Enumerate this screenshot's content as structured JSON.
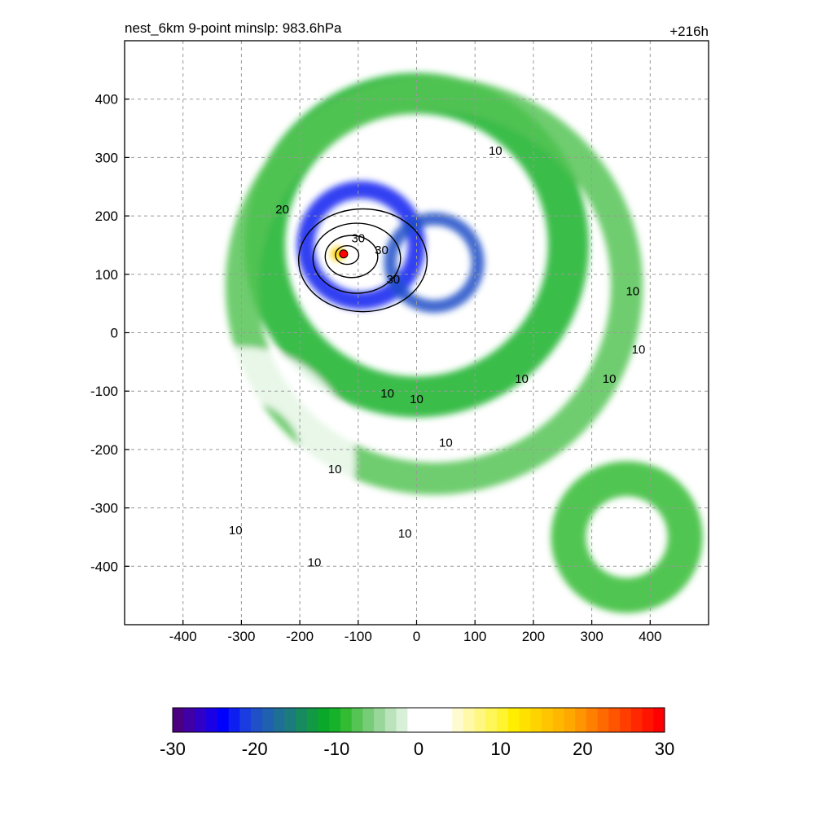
{
  "chart_data": {
    "type": "heatmap",
    "title": "nest_6km  9-point minslp: 983.6hPa",
    "forecast_hour": "+216h",
    "xlabel": "",
    "ylabel": "",
    "xlim": [
      -500,
      500
    ],
    "ylim": [
      -500,
      500
    ],
    "xticks": [
      -400,
      -300,
      -200,
      -100,
      0,
      100,
      200,
      300,
      400
    ],
    "yticks": [
      400,
      300,
      200,
      100,
      0,
      -100,
      -200,
      -300,
      -400
    ],
    "grid": true,
    "storm_center": [
      -125,
      135
    ],
    "fill_regions": [
      {
        "name": "spiral-band",
        "value": -10,
        "cx": 0,
        "cy": 150,
        "r": 260,
        "w": 70
      },
      {
        "name": "outer-spiral",
        "value": -8,
        "cx": 30,
        "cy": 80,
        "r": 330,
        "w": 55
      },
      {
        "name": "inner-ring",
        "value": -22,
        "cx": -95,
        "cy": 150,
        "r": 95,
        "w": 30
      },
      {
        "name": "east-band",
        "value": -20,
        "cx": 30,
        "cy": 120,
        "r": 75,
        "w": 22
      },
      {
        "name": "southeast-band",
        "value": -9,
        "cx": 360,
        "cy": -350,
        "r": 100,
        "w": 60
      },
      {
        "name": "southwest-positive",
        "value": 4,
        "cx": -300,
        "cy": -220,
        "r": 150,
        "w": 90
      },
      {
        "name": "core-positive",
        "value": 14,
        "cx": -135,
        "cy": 135,
        "r": 12,
        "w": 8
      }
    ],
    "contour_labels": [
      {
        "text": "10",
        "x": 135,
        "y": 310
      },
      {
        "text": "20",
        "x": -230,
        "y": 210
      },
      {
        "text": "30",
        "x": -100,
        "y": 160
      },
      {
        "text": "30",
        "x": -60,
        "y": 140
      },
      {
        "text": "30",
        "x": -40,
        "y": 90
      },
      {
        "text": "10",
        "x": 370,
        "y": 70
      },
      {
        "text": "10",
        "x": 380,
        "y": -30
      },
      {
        "text": "10",
        "x": 330,
        "y": -80
      },
      {
        "text": "10",
        "x": 180,
        "y": -80
      },
      {
        "text": "10",
        "x": -50,
        "y": -105
      },
      {
        "text": "10",
        "x": 0,
        "y": -115
      },
      {
        "text": "10",
        "x": 50,
        "y": -190
      },
      {
        "text": "10",
        "x": -140,
        "y": -235
      },
      {
        "text": "10",
        "x": -20,
        "y": -345
      },
      {
        "text": "10",
        "x": -310,
        "y": -340
      },
      {
        "text": "10",
        "x": -175,
        "y": -395
      }
    ],
    "colorbar": {
      "min": -30,
      "max": 30,
      "tick_labels": [
        "-30",
        "-20",
        "-10",
        "0",
        "10",
        "20",
        "30"
      ],
      "colors": [
        "#4b0082",
        "#3f00a5",
        "#2e00c8",
        "#1a00e6",
        "#0000ff",
        "#0d1ef0",
        "#1a3ce1",
        "#2050c8",
        "#1f60b0",
        "#1e6e96",
        "#1c7c7d",
        "#178a5f",
        "#119944",
        "#0aa82a",
        "#15b22a",
        "#33bb33",
        "#55c455",
        "#77cd77",
        "#99d699",
        "#bbe3bb",
        "#d8efd8",
        "#ffffff",
        "#ffffff",
        "#ffffff",
        "#ffffff",
        "#fffbd0",
        "#fff9a8",
        "#fff780",
        "#fff658",
        "#fff430",
        "#ffee00",
        "#ffe100",
        "#ffd300",
        "#ffc500",
        "#ffb700",
        "#ffa900",
        "#ff9500",
        "#ff7f00",
        "#ff6a00",
        "#ff5400",
        "#ff3e00",
        "#ff2800",
        "#ff1400",
        "#ff0000"
      ]
    }
  }
}
